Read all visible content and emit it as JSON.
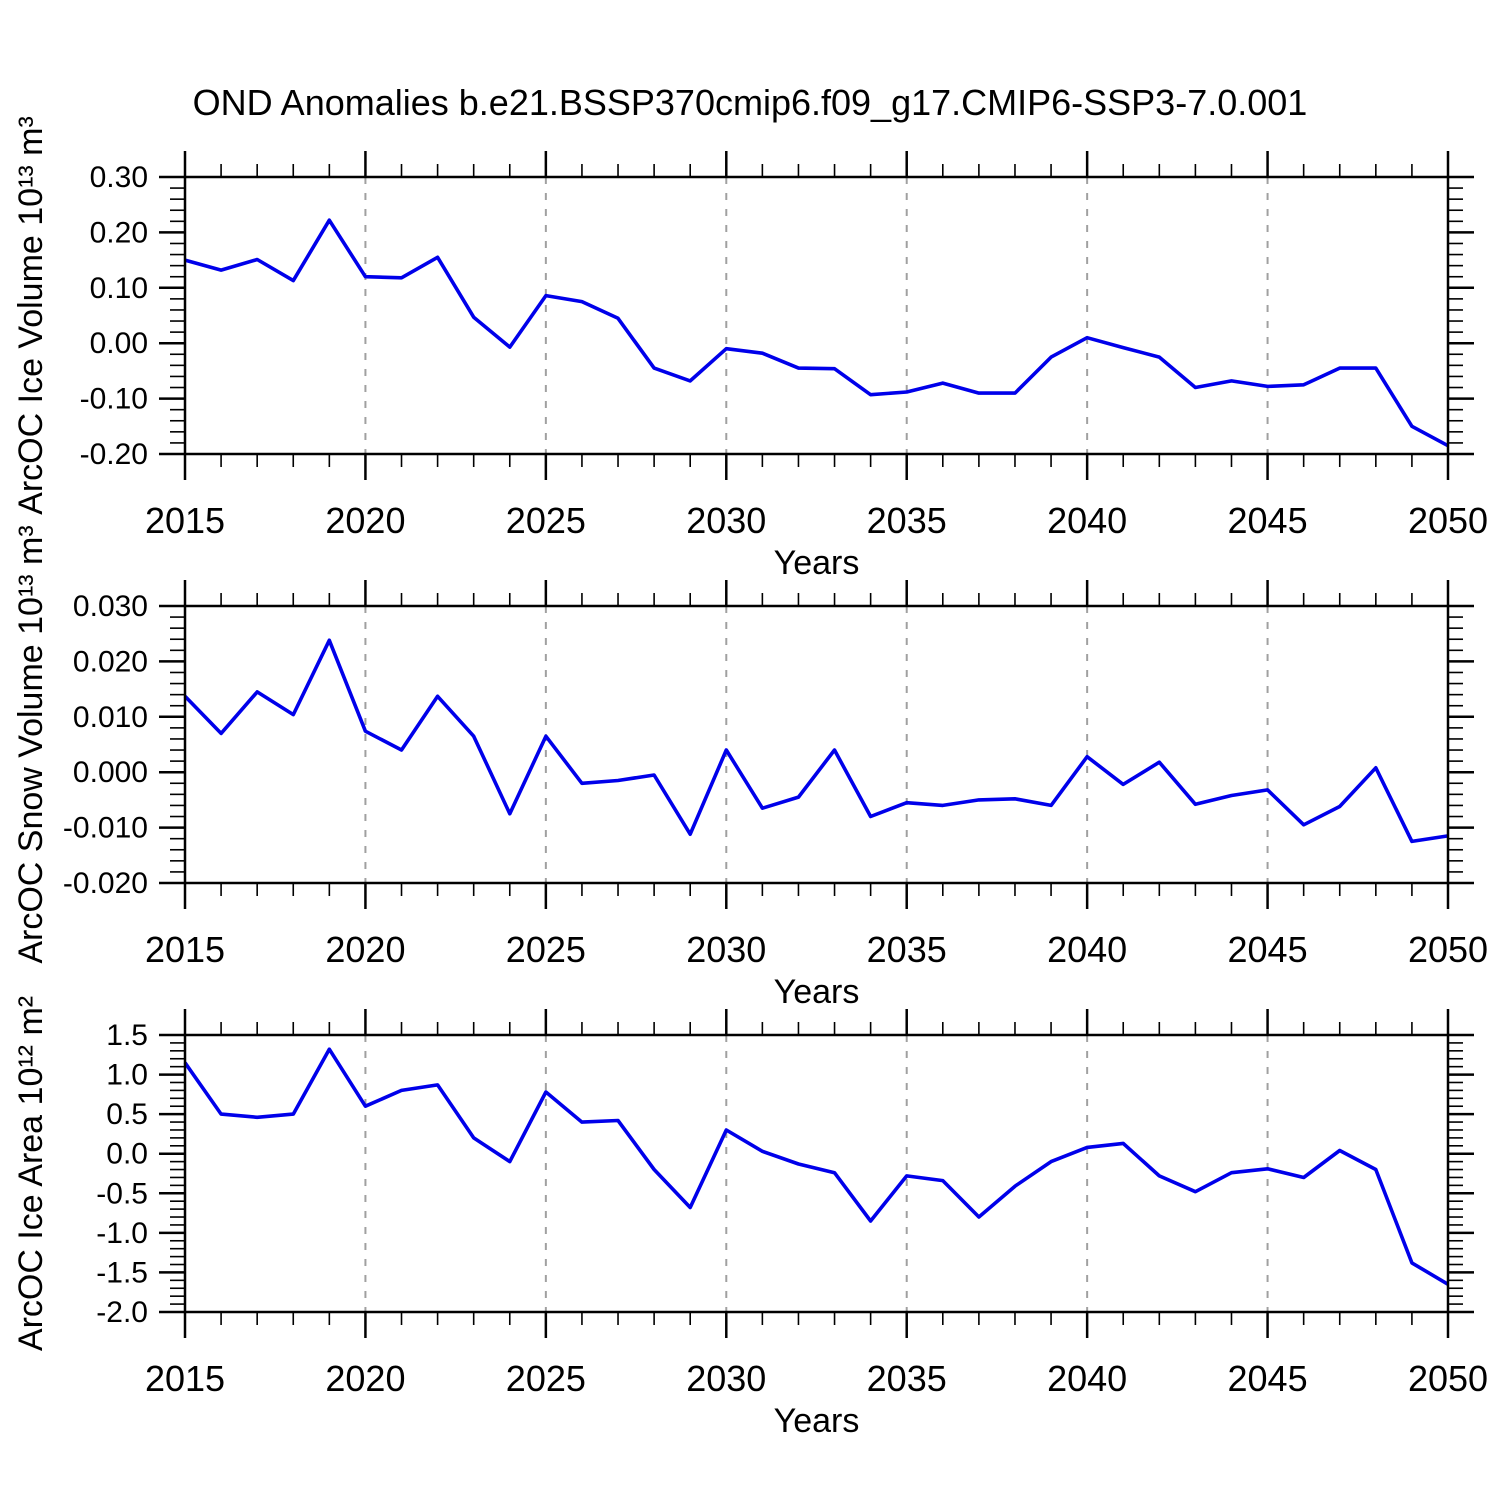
{
  "title": "OND Anomalies b.e21.BSSP370cmip6.f09_g17.CMIP6-SSP3-7.0.001",
  "colors": {
    "line": "#0000ea",
    "grid": "#a0a0a0",
    "axis": "#000000"
  },
  "chart_data": [
    {
      "type": "line",
      "name": "ice-volume",
      "ylabel": "ArcOC Ice Volume 10¹³ m³",
      "xlabel": "Years",
      "x": [
        2015,
        2016,
        2017,
        2018,
        2019,
        2020,
        2021,
        2022,
        2023,
        2024,
        2025,
        2026,
        2027,
        2028,
        2029,
        2030,
        2031,
        2032,
        2033,
        2034,
        2035,
        2036,
        2037,
        2038,
        2039,
        2040,
        2041,
        2042,
        2043,
        2044,
        2045,
        2046,
        2047,
        2048,
        2049,
        2050
      ],
      "values": [
        0.15,
        0.132,
        0.151,
        0.113,
        0.222,
        0.12,
        0.118,
        0.155,
        0.047,
        -0.007,
        0.086,
        0.075,
        0.045,
        -0.045,
        -0.068,
        -0.01,
        -0.018,
        -0.045,
        -0.046,
        -0.093,
        -0.088,
        -0.072,
        -0.09,
        -0.09,
        -0.025,
        0.01,
        -0.008,
        -0.025,
        -0.08,
        -0.068,
        -0.078,
        -0.075,
        -0.045,
        -0.045,
        -0.15,
        -0.185
      ],
      "ylim": [
        -0.2,
        0.3
      ],
      "yticks": [
        0.3,
        0.2,
        0.1,
        0.0,
        -0.1,
        -0.2
      ],
      "ytick_labels": [
        "0.30",
        "0.20",
        "0.10",
        "0.00",
        "-0.10",
        "-0.20"
      ],
      "y_minor_step": 0.02,
      "xlim": [
        2015,
        2050
      ],
      "xticks": [
        2015,
        2020,
        2025,
        2030,
        2035,
        2040,
        2045,
        2050
      ],
      "xtick_labels": [
        "2015",
        "2020",
        "2025",
        "2030",
        "2035",
        "2040",
        "2045",
        "2050"
      ],
      "x_minor_step": 1,
      "grid_x": [
        2020,
        2025,
        2030,
        2035,
        2040,
        2045
      ],
      "grid_style": "dashed"
    },
    {
      "type": "line",
      "name": "snow-volume",
      "ylabel": "ArcOC Snow Volume 10¹³ m³",
      "xlabel": "Years",
      "x": [
        2015,
        2016,
        2017,
        2018,
        2019,
        2020,
        2021,
        2022,
        2023,
        2024,
        2025,
        2026,
        2027,
        2028,
        2029,
        2030,
        2031,
        2032,
        2033,
        2034,
        2035,
        2036,
        2037,
        2038,
        2039,
        2040,
        2041,
        2042,
        2043,
        2044,
        2045,
        2046,
        2047,
        2048,
        2049,
        2050
      ],
      "values": [
        0.0137,
        0.007,
        0.0145,
        0.0104,
        0.0238,
        0.0074,
        0.004,
        0.0137,
        0.0065,
        -0.0075,
        0.0065,
        -0.002,
        -0.0015,
        -0.0005,
        -0.0112,
        0.004,
        -0.0065,
        -0.0045,
        0.004,
        -0.008,
        -0.0055,
        -0.006,
        -0.005,
        -0.0048,
        -0.006,
        0.0028,
        -0.0022,
        0.0018,
        -0.0058,
        -0.0042,
        -0.0032,
        -0.0095,
        -0.0062,
        0.0008,
        -0.0125,
        -0.0115
      ],
      "ylim": [
        -0.02,
        0.03
      ],
      "yticks": [
        0.03,
        0.02,
        0.01,
        0.0,
        -0.01,
        -0.02
      ],
      "ytick_labels": [
        "0.030",
        "0.020",
        "0.010",
        "0.000",
        "-0.010",
        "-0.020"
      ],
      "y_minor_step": 0.002,
      "xlim": [
        2015,
        2050
      ],
      "xticks": [
        2015,
        2020,
        2025,
        2030,
        2035,
        2040,
        2045,
        2050
      ],
      "xtick_labels": [
        "2015",
        "2020",
        "2025",
        "2030",
        "2035",
        "2040",
        "2045",
        "2050"
      ],
      "x_minor_step": 1,
      "grid_x": [
        2020,
        2025,
        2030,
        2035,
        2040,
        2045
      ],
      "grid_style": "dashed"
    },
    {
      "type": "line",
      "name": "ice-area",
      "ylabel": "ArcOC Ice Area 10¹² m²",
      "xlabel": "Years",
      "x": [
        2015,
        2016,
        2017,
        2018,
        2019,
        2020,
        2021,
        2022,
        2023,
        2024,
        2025,
        2026,
        2027,
        2028,
        2029,
        2030,
        2031,
        2032,
        2033,
        2034,
        2035,
        2036,
        2037,
        2038,
        2039,
        2040,
        2041,
        2042,
        2043,
        2044,
        2045,
        2046,
        2047,
        2048,
        2049,
        2050
      ],
      "values": [
        1.15,
        0.5,
        0.46,
        0.5,
        1.32,
        0.6,
        0.8,
        0.87,
        0.2,
        -0.1,
        0.78,
        0.4,
        0.42,
        -0.2,
        -0.68,
        0.3,
        0.03,
        -0.13,
        -0.24,
        -0.85,
        -0.28,
        -0.34,
        -0.8,
        -0.41,
        -0.1,
        0.08,
        0.13,
        -0.28,
        -0.48,
        -0.24,
        -0.19,
        -0.3,
        0.04,
        -0.2,
        -1.38,
        -1.65
      ],
      "ylim": [
        -2.0,
        1.5
      ],
      "yticks": [
        1.5,
        1.0,
        0.5,
        0.0,
        -0.5,
        -1.0,
        -1.5,
        -2.0
      ],
      "ytick_labels": [
        "1.5",
        "1.0",
        "0.5",
        "0.0",
        "-0.5",
        "-1.0",
        "-1.5",
        "-2.0"
      ],
      "y_minor_step": 0.1,
      "xlim": [
        2015,
        2050
      ],
      "xticks": [
        2015,
        2020,
        2025,
        2030,
        2035,
        2040,
        2045,
        2050
      ],
      "xtick_labels": [
        "2015",
        "2020",
        "2025",
        "2030",
        "2035",
        "2040",
        "2045",
        "2050"
      ],
      "x_minor_step": 1,
      "grid_x": [
        2020,
        2025,
        2030,
        2035,
        2040,
        2045
      ],
      "grid_style": "dashed"
    }
  ]
}
